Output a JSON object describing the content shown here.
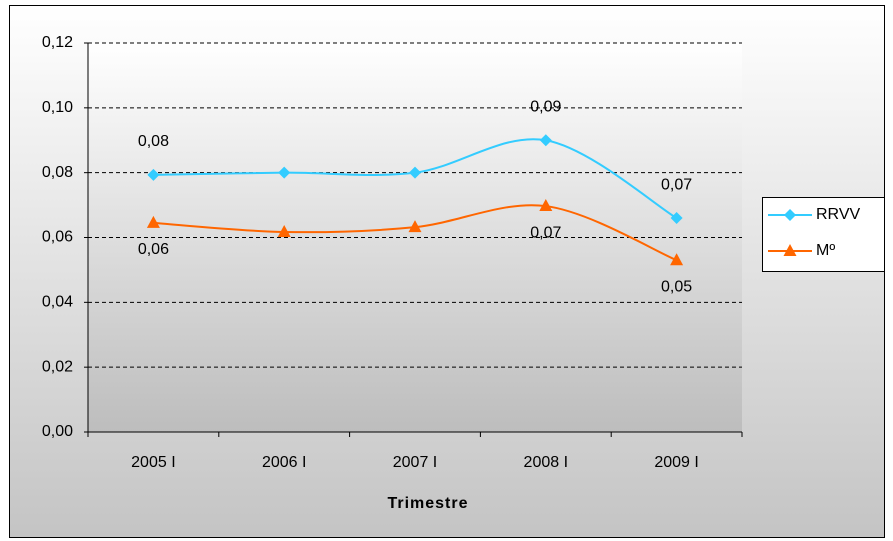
{
  "chart_data": {
    "type": "line",
    "x_label": "Trimestre",
    "categories": [
      "2005 I",
      "2006 I",
      "2007 I",
      "2008 I",
      "2009 I"
    ],
    "series": [
      {
        "name": "RRVV",
        "color": "#33ccff",
        "marker": "diamond",
        "label_side": "above",
        "values": [
          0.0793,
          0.08,
          0.08,
          0.09,
          0.066
        ],
        "value_labels": [
          "0,08",
          null,
          null,
          "0,09",
          "0,07"
        ]
      },
      {
        "name": "Mº",
        "color": "#ff6600",
        "marker": "triangle",
        "label_side": "below",
        "values": [
          0.0645,
          0.0617,
          0.0632,
          0.0697,
          0.053
        ],
        "value_labels": [
          "0,06",
          null,
          null,
          "0,07",
          "0,05"
        ]
      }
    ],
    "ylim": [
      0,
      0.12
    ],
    "yticks": [
      {
        "value": 0,
        "label": "0,00"
      },
      {
        "value": 0.02,
        "label": "0,02"
      },
      {
        "value": 0.04,
        "label": "0,04"
      },
      {
        "value": 0.06,
        "label": "0,06"
      },
      {
        "value": 0.08,
        "label": "0,08"
      },
      {
        "value": 0.1,
        "label": "0,10"
      },
      {
        "value": 0.12,
        "label": "0,12"
      }
    ],
    "grid": true,
    "smooth": true,
    "legend": "right"
  }
}
